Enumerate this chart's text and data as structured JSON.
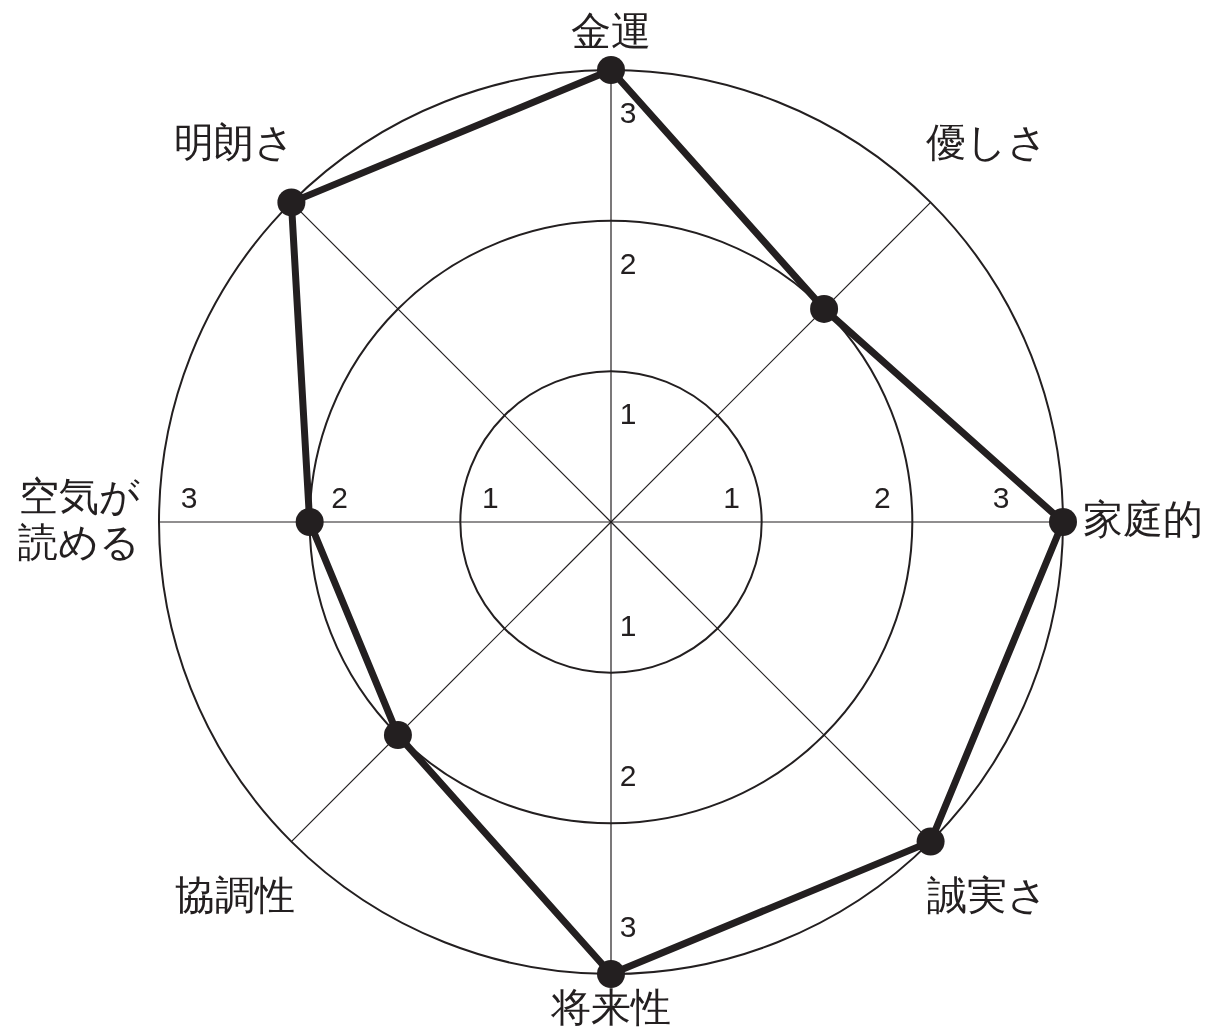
{
  "chart_data": {
    "type": "radar",
    "categories": [
      "金運",
      "優しさ",
      "家庭的",
      "誠実さ",
      "将来性",
      "協調性",
      "空気が読める",
      "明朗さ"
    ],
    "series": [
      {
        "color": "#231f20",
        "values": [
          3,
          2,
          3,
          3,
          3,
          2,
          2,
          3
        ]
      }
    ],
    "ylim": [
      0,
      3
    ],
    "yticks": [
      1,
      2,
      3
    ],
    "grid": true,
    "marker": "circle",
    "line_style": "solid",
    "annotations": [
      "1",
      "2",
      "3",
      "1",
      "2",
      "3",
      "1",
      "2",
      "3"
    ]
  }
}
